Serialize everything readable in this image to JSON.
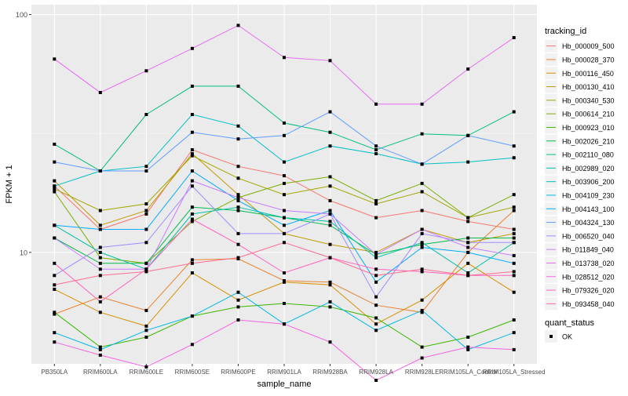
{
  "chart_data": {
    "type": "line",
    "title": "",
    "xlabel": "sample_name",
    "ylabel": "FPKM + 1",
    "y_scale": "log10",
    "ylim": [
      3.4,
      110
    ],
    "y_ticks": [
      {
        "value": 10,
        "label": "10"
      },
      {
        "value": 100,
        "label": "100"
      }
    ],
    "grid": true,
    "categories": [
      "PB350LA",
      "RRIM600LA",
      "RRIM600LE",
      "RRIM600SE",
      "RRIM600PE",
      "RRIM901LA",
      "RRIM928BA",
      "RRIM928LA",
      "RRIM928LE",
      "RRIM105LA_Control",
      "RRIM105LA_Stressed"
    ],
    "legend": {
      "position": "right",
      "title": "tracking_id",
      "status_title": "quant_status",
      "status_entries": [
        "OK"
      ]
    },
    "series": [
      {
        "name": "Hb_000009_500",
        "color": "#F8766D",
        "values": [
          19.0,
          12.5,
          14.5,
          27.0,
          23.0,
          21.0,
          16.5,
          14.0,
          15.0,
          13.5,
          12.5
        ]
      },
      {
        "name": "Hb_000028_370",
        "color": "#EA8331",
        "values": [
          5.5,
          6.5,
          5.7,
          9.3,
          9.4,
          7.6,
          7.5,
          6.0,
          5.6,
          10.0,
          15.0
        ]
      },
      {
        "name": "Hb_000116_450",
        "color": "#D89000",
        "values": [
          7.0,
          5.6,
          4.9,
          8.2,
          6.3,
          7.5,
          7.3,
          5.0,
          6.3,
          9.0,
          6.8
        ]
      },
      {
        "name": "Hb_000130_410",
        "color": "#C09B00",
        "values": [
          20.0,
          13.0,
          15.0,
          26.0,
          17.5,
          12.0,
          10.8,
          10.0,
          12.5,
          11.0,
          12.0
        ]
      },
      {
        "name": "Hb_000340_530",
        "color": "#A3A500",
        "values": [
          18.5,
          15.0,
          16.0,
          25.5,
          20.5,
          17.5,
          19.0,
          16.0,
          18.0,
          14.0,
          15.5
        ]
      },
      {
        "name": "Hb_000614_210",
        "color": "#7CAE00",
        "values": [
          18.0,
          9.5,
          9.0,
          13.5,
          17.0,
          19.5,
          20.8,
          16.5,
          19.5,
          14.0,
          17.5
        ]
      },
      {
        "name": "Hb_000923_010",
        "color": "#39B600",
        "values": [
          5.6,
          4.0,
          4.4,
          5.4,
          5.9,
          6.1,
          5.9,
          5.3,
          4.0,
          4.4,
          5.2
        ]
      },
      {
        "name": "Hb_002026_210",
        "color": "#00BB4E",
        "values": [
          11.5,
          9.0,
          9.0,
          15.5,
          15.0,
          14.0,
          13.0,
          9.8,
          10.8,
          11.5,
          11.5
        ]
      },
      {
        "name": "Hb_002110_080",
        "color": "#00BF7D",
        "values": [
          28.5,
          22.0,
          38.0,
          50.0,
          50.0,
          35.0,
          32.0,
          27.0,
          31.5,
          31.0,
          39.0
        ]
      },
      {
        "name": "Hb_002989_020",
        "color": "#00C1A3",
        "values": [
          13.0,
          10.0,
          8.5,
          14.5,
          15.5,
          14.0,
          13.5,
          9.5,
          11.0,
          8.2,
          11.0
        ]
      },
      {
        "name": "Hb_003906_200",
        "color": "#00BFC4",
        "values": [
          19.0,
          22.0,
          23.0,
          38.0,
          34.0,
          24.0,
          28.0,
          26.0,
          23.5,
          24.0,
          25.0
        ]
      },
      {
        "name": "Hb_004109_230",
        "color": "#00B8E5",
        "values": [
          4.6,
          3.9,
          4.7,
          5.4,
          6.8,
          5.0,
          6.2,
          4.7,
          5.7,
          3.9,
          4.6
        ]
      },
      {
        "name": "Hb_004143_100",
        "color": "#00ACFC",
        "values": [
          13.0,
          12.5,
          12.5,
          22.0,
          16.5,
          13.0,
          15.0,
          7.5,
          10.5,
          10.0,
          9.0
        ]
      },
      {
        "name": "Hb_004324_130",
        "color": "#619CFF",
        "values": [
          24.0,
          22.0,
          22.0,
          32.0,
          30.0,
          31.0,
          39.0,
          28.0,
          23.5,
          31.0,
          28.0
        ]
      },
      {
        "name": "Hb_006520_040",
        "color": "#9F8CFF",
        "values": [
          8.0,
          10.5,
          11.0,
          19.0,
          12.0,
          12.0,
          14.5,
          6.5,
          12.0,
          11.0,
          11.0
        ]
      },
      {
        "name": "Hb_011849_040",
        "color": "#C77CFF",
        "values": [
          11.5,
          8.5,
          8.5,
          20.0,
          17.0,
          15.0,
          14.5,
          9.8,
          12.5,
          10.5,
          9.7
        ]
      },
      {
        "name": "Hb_013738_020",
        "color": "#E76BF3",
        "values": [
          65.0,
          47.0,
          58.0,
          72.0,
          90.0,
          66.0,
          64.0,
          42.0,
          42.0,
          59.0,
          80.0
        ]
      },
      {
        "name": "Hb_028512_020",
        "color": "#F564E3",
        "values": [
          4.2,
          3.7,
          3.3,
          4.1,
          5.2,
          5.0,
          4.2,
          2.9,
          3.6,
          4.0,
          3.9
        ]
      },
      {
        "name": "Hb_079326_020",
        "color": "#FF62BC",
        "values": [
          9.0,
          6.2,
          8.5,
          13.8,
          10.8,
          8.2,
          9.5,
          8.5,
          8.3,
          8.0,
          8.0
        ]
      },
      {
        "name": "Hb_093458_040",
        "color": "#FF6C91",
        "values": [
          7.3,
          8.0,
          8.3,
          9.0,
          9.5,
          11.0,
          9.5,
          8.0,
          8.5,
          8.0,
          8.3
        ]
      }
    ]
  }
}
